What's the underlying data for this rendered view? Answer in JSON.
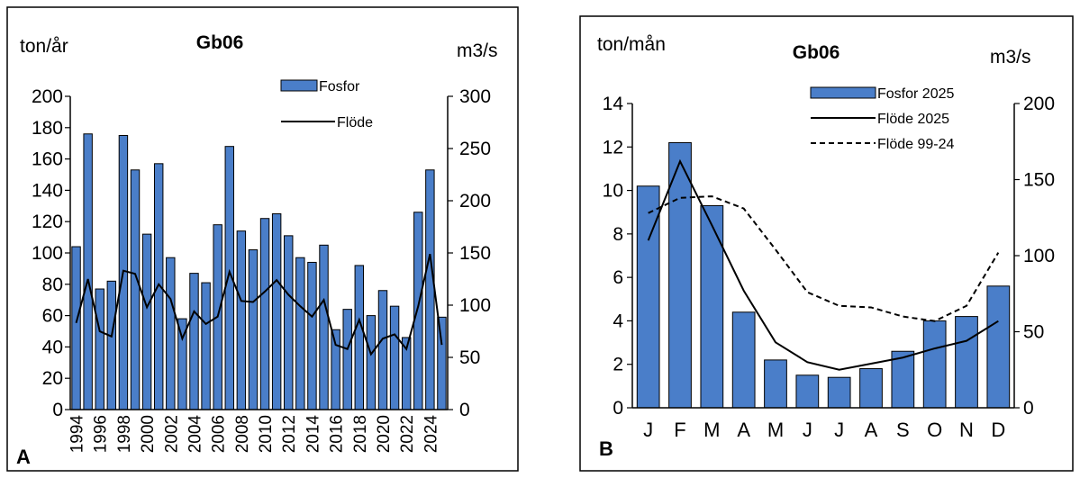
{
  "chart_data": [
    {
      "type": "bar",
      "panel_letter": "A",
      "title": "Gb06",
      "ylabel": "ton/år",
      "y2label": "m3/s",
      "ylim": [
        0,
        200
      ],
      "y2lim": [
        0,
        300
      ],
      "yticks": [
        0,
        20,
        40,
        60,
        80,
        100,
        120,
        140,
        160,
        180,
        200
      ],
      "y2ticks": [
        0,
        50,
        100,
        150,
        200,
        250,
        300
      ],
      "xticklabels": [
        "1994",
        "1996",
        "1998",
        "2000",
        "2002",
        "2004",
        "2006",
        "2008",
        "2010",
        "2012",
        "2014",
        "2016",
        "2018",
        "2020",
        "2022",
        "2024"
      ],
      "legend_position": "top-right",
      "categories": [
        "1994",
        "1995",
        "1996",
        "1997",
        "1998",
        "1999",
        "2000",
        "2001",
        "2002",
        "2003",
        "2004",
        "2005",
        "2006",
        "2007",
        "2008",
        "2009",
        "2010",
        "2011",
        "2012",
        "2013",
        "2014",
        "2015",
        "2016",
        "2017",
        "2018",
        "2019",
        "2020",
        "2021",
        "2022",
        "2023",
        "2024",
        "2025"
      ],
      "series": [
        {
          "name": "Fosfor",
          "type": "bar",
          "axis": "left",
          "color": "#4a7ec9",
          "values": [
            104,
            176,
            77,
            82,
            175,
            153,
            112,
            157,
            97,
            58,
            87,
            81,
            118,
            168,
            114,
            102,
            122,
            125,
            111,
            97,
            94,
            105,
            51,
            64,
            92,
            60,
            76,
            66,
            46,
            126,
            153,
            59
          ]
        },
        {
          "name": "Flöde",
          "type": "line",
          "axis": "right",
          "color": "#000000",
          "dash": "solid",
          "values": [
            83,
            125,
            75,
            70,
            133,
            130,
            98,
            120,
            106,
            68,
            94,
            82,
            89,
            132,
            104,
            103,
            113,
            124,
            110,
            99,
            89,
            105,
            62,
            58,
            86,
            53,
            68,
            72,
            58,
            99,
            149,
            62
          ]
        }
      ]
    },
    {
      "type": "bar",
      "panel_letter": "B",
      "title": "Gb06",
      "ylabel": "ton/mån",
      "y2label": "m3/s",
      "ylim": [
        0,
        14
      ],
      "y2lim": [
        0,
        200
      ],
      "yticks": [
        0,
        2,
        4,
        6,
        8,
        10,
        12,
        14
      ],
      "y2ticks": [
        0,
        50,
        100,
        150,
        200
      ],
      "legend_position": "top-center",
      "categories": [
        "J",
        "F",
        "M",
        "A",
        "M",
        "J",
        "J",
        "A",
        "S",
        "O",
        "N",
        "D"
      ],
      "series": [
        {
          "name": "Fosfor 2025",
          "type": "bar",
          "axis": "left",
          "color": "#4a7ec9",
          "values": [
            10.2,
            12.2,
            9.3,
            4.4,
            2.2,
            1.5,
            1.4,
            1.8,
            2.6,
            4.0,
            4.2,
            5.6
          ]
        },
        {
          "name": "Flöde 2025",
          "type": "line",
          "axis": "right",
          "color": "#000000",
          "dash": "solid",
          "values": [
            110,
            162,
            120,
            77,
            43,
            30,
            25,
            29,
            33,
            39,
            44,
            57
          ]
        },
        {
          "name": "Flöde 99-24",
          "type": "line",
          "axis": "right",
          "color": "#000000",
          "dash": "dashed",
          "values": [
            128,
            138,
            139,
            131,
            104,
            76,
            67,
            66,
            60,
            57,
            67,
            102
          ]
        }
      ]
    }
  ]
}
